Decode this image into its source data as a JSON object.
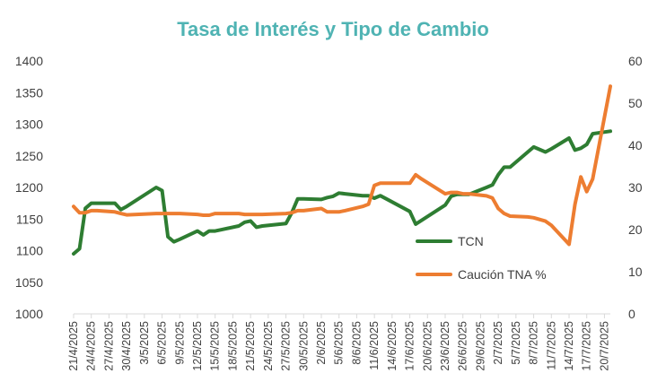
{
  "chart_data": {
    "type": "line",
    "title": "Tasa de Interés y Tipo de Cambio",
    "title_color": "#4fb3b3",
    "xlabel": "",
    "ylabel": "",
    "y2label": "",
    "grid": false,
    "legend_position": "inside-right",
    "ylim": [
      1000,
      1400
    ],
    "yticks": [
      "1000",
      "1050",
      "1100",
      "1150",
      "1200",
      "1250",
      "1300",
      "1350",
      "1400"
    ],
    "y2lim": [
      0,
      60
    ],
    "y2ticks": [
      "0",
      "10",
      "20",
      "30",
      "40",
      "50",
      "60"
    ],
    "x_tick_labels": [
      "21/4/2025",
      "24/4/2025",
      "27/4/2025",
      "30/4/2025",
      "3/5/2025",
      "6/5/2025",
      "9/5/2025",
      "12/5/2025",
      "15/5/2025",
      "18/5/2025",
      "21/5/2025",
      "24/5/2025",
      "27/5/2025",
      "30/5/2025",
      "2/6/2025",
      "5/6/2025",
      "8/6/2025",
      "11/6/2025",
      "14/6/2025",
      "17/6/2025",
      "20/6/2025",
      "23/6/2025",
      "26/6/2025",
      "29/6/2025",
      "2/7/2025",
      "5/7/2025",
      "8/7/2025",
      "11/7/2025",
      "14/7/2025",
      "17/7/2025",
      "20/7/2025"
    ],
    "series": [
      {
        "name": "TCN",
        "axis": "left",
        "color": "#2e7d32",
        "x": [
          "21/4/2025",
          "22/4/2025",
          "23/4/2025",
          "24/4/2025",
          "25/4/2025",
          "28/4/2025",
          "29/4/2025",
          "30/4/2025",
          "5/5/2025",
          "6/5/2025",
          "7/5/2025",
          "8/5/2025",
          "9/5/2025",
          "12/5/2025",
          "13/5/2025",
          "14/5/2025",
          "15/5/2025",
          "16/5/2025",
          "19/5/2025",
          "20/5/2025",
          "21/5/2025",
          "22/5/2025",
          "23/5/2025",
          "27/5/2025",
          "28/5/2025",
          "29/5/2025",
          "30/5/2025",
          "2/6/2025",
          "3/6/2025",
          "4/6/2025",
          "5/6/2025",
          "6/6/2025",
          "9/6/2025",
          "10/6/2025",
          "11/6/2025",
          "12/6/2025",
          "13/6/2025",
          "17/6/2025",
          "18/6/2025",
          "19/6/2025",
          "23/6/2025",
          "24/6/2025",
          "25/6/2025",
          "26/6/2025",
          "27/6/2025",
          "30/6/2025",
          "1/7/2025",
          "2/7/2025",
          "3/7/2025",
          "4/7/2025",
          "7/7/2025",
          "8/7/2025",
          "10/7/2025",
          "11/7/2025",
          "14/7/2025",
          "15/7/2025",
          "16/7/2025",
          "17/7/2025",
          "18/7/2025",
          "21/7/2025"
        ],
        "values": [
          1095,
          1103,
          1167,
          1175,
          1175,
          1175,
          1165,
          1170,
          1200,
          1195,
          1122,
          1114,
          1118,
          1131,
          1125,
          1131,
          1131,
          1133,
          1139,
          1145,
          1147,
          1137,
          1139,
          1143,
          1160,
          1182,
          1182,
          1181,
          1184,
          1186,
          1191,
          1190,
          1187,
          1187,
          1183,
          1187,
          1182,
          1162,
          1142,
          1148,
          1172,
          1186,
          1189,
          1189,
          1189,
          1200,
          1204,
          1220,
          1232,
          1232,
          1256,
          1264,
          1256,
          1261,
          1278,
          1259,
          1262,
          1268,
          1285,
          1289
        ]
      },
      {
        "name": "Caución TNA %",
        "axis": "right",
        "color": "#ed7d31",
        "x": [
          "21/4/2025",
          "22/4/2025",
          "23/4/2025",
          "24/4/2025",
          "25/4/2025",
          "28/4/2025",
          "29/4/2025",
          "30/4/2025",
          "5/5/2025",
          "6/5/2025",
          "7/5/2025",
          "8/5/2025",
          "9/5/2025",
          "12/5/2025",
          "13/5/2025",
          "14/5/2025",
          "15/5/2025",
          "16/5/2025",
          "19/5/2025",
          "20/5/2025",
          "21/5/2025",
          "22/5/2025",
          "23/5/2025",
          "27/5/2025",
          "28/5/2025",
          "29/5/2025",
          "30/5/2025",
          "2/6/2025",
          "3/6/2025",
          "4/6/2025",
          "5/6/2025",
          "6/6/2025",
          "9/6/2025",
          "10/6/2025",
          "11/6/2025",
          "12/6/2025",
          "13/6/2025",
          "17/6/2025",
          "18/6/2025",
          "19/6/2025",
          "23/6/2025",
          "24/6/2025",
          "25/6/2025",
          "26/6/2025",
          "27/6/2025",
          "30/6/2025",
          "1/7/2025",
          "2/7/2025",
          "3/7/2025",
          "4/7/2025",
          "7/7/2025",
          "8/7/2025",
          "10/7/2025",
          "11/7/2025",
          "14/7/2025",
          "15/7/2025",
          "16/7/2025",
          "17/7/2025",
          "18/7/2025",
          "21/7/2025"
        ],
        "values": [
          25.5,
          24,
          24,
          24.5,
          24.5,
          24.2,
          23.8,
          23.5,
          23.8,
          23.8,
          23.8,
          23.8,
          23.8,
          23.6,
          23.4,
          23.4,
          23.8,
          23.8,
          23.8,
          23.6,
          23.6,
          23.6,
          23.6,
          23.8,
          24,
          24.5,
          24.5,
          25,
          24.2,
          24.2,
          24.2,
          24.5,
          25.5,
          26,
          30.5,
          31,
          31,
          31,
          33,
          32,
          28.5,
          28.8,
          28.8,
          28.5,
          28.5,
          28,
          27.5,
          25,
          23.8,
          23.2,
          23,
          22.8,
          22,
          21,
          16.5,
          26,
          32.5,
          29,
          32,
          54
        ]
      }
    ]
  }
}
